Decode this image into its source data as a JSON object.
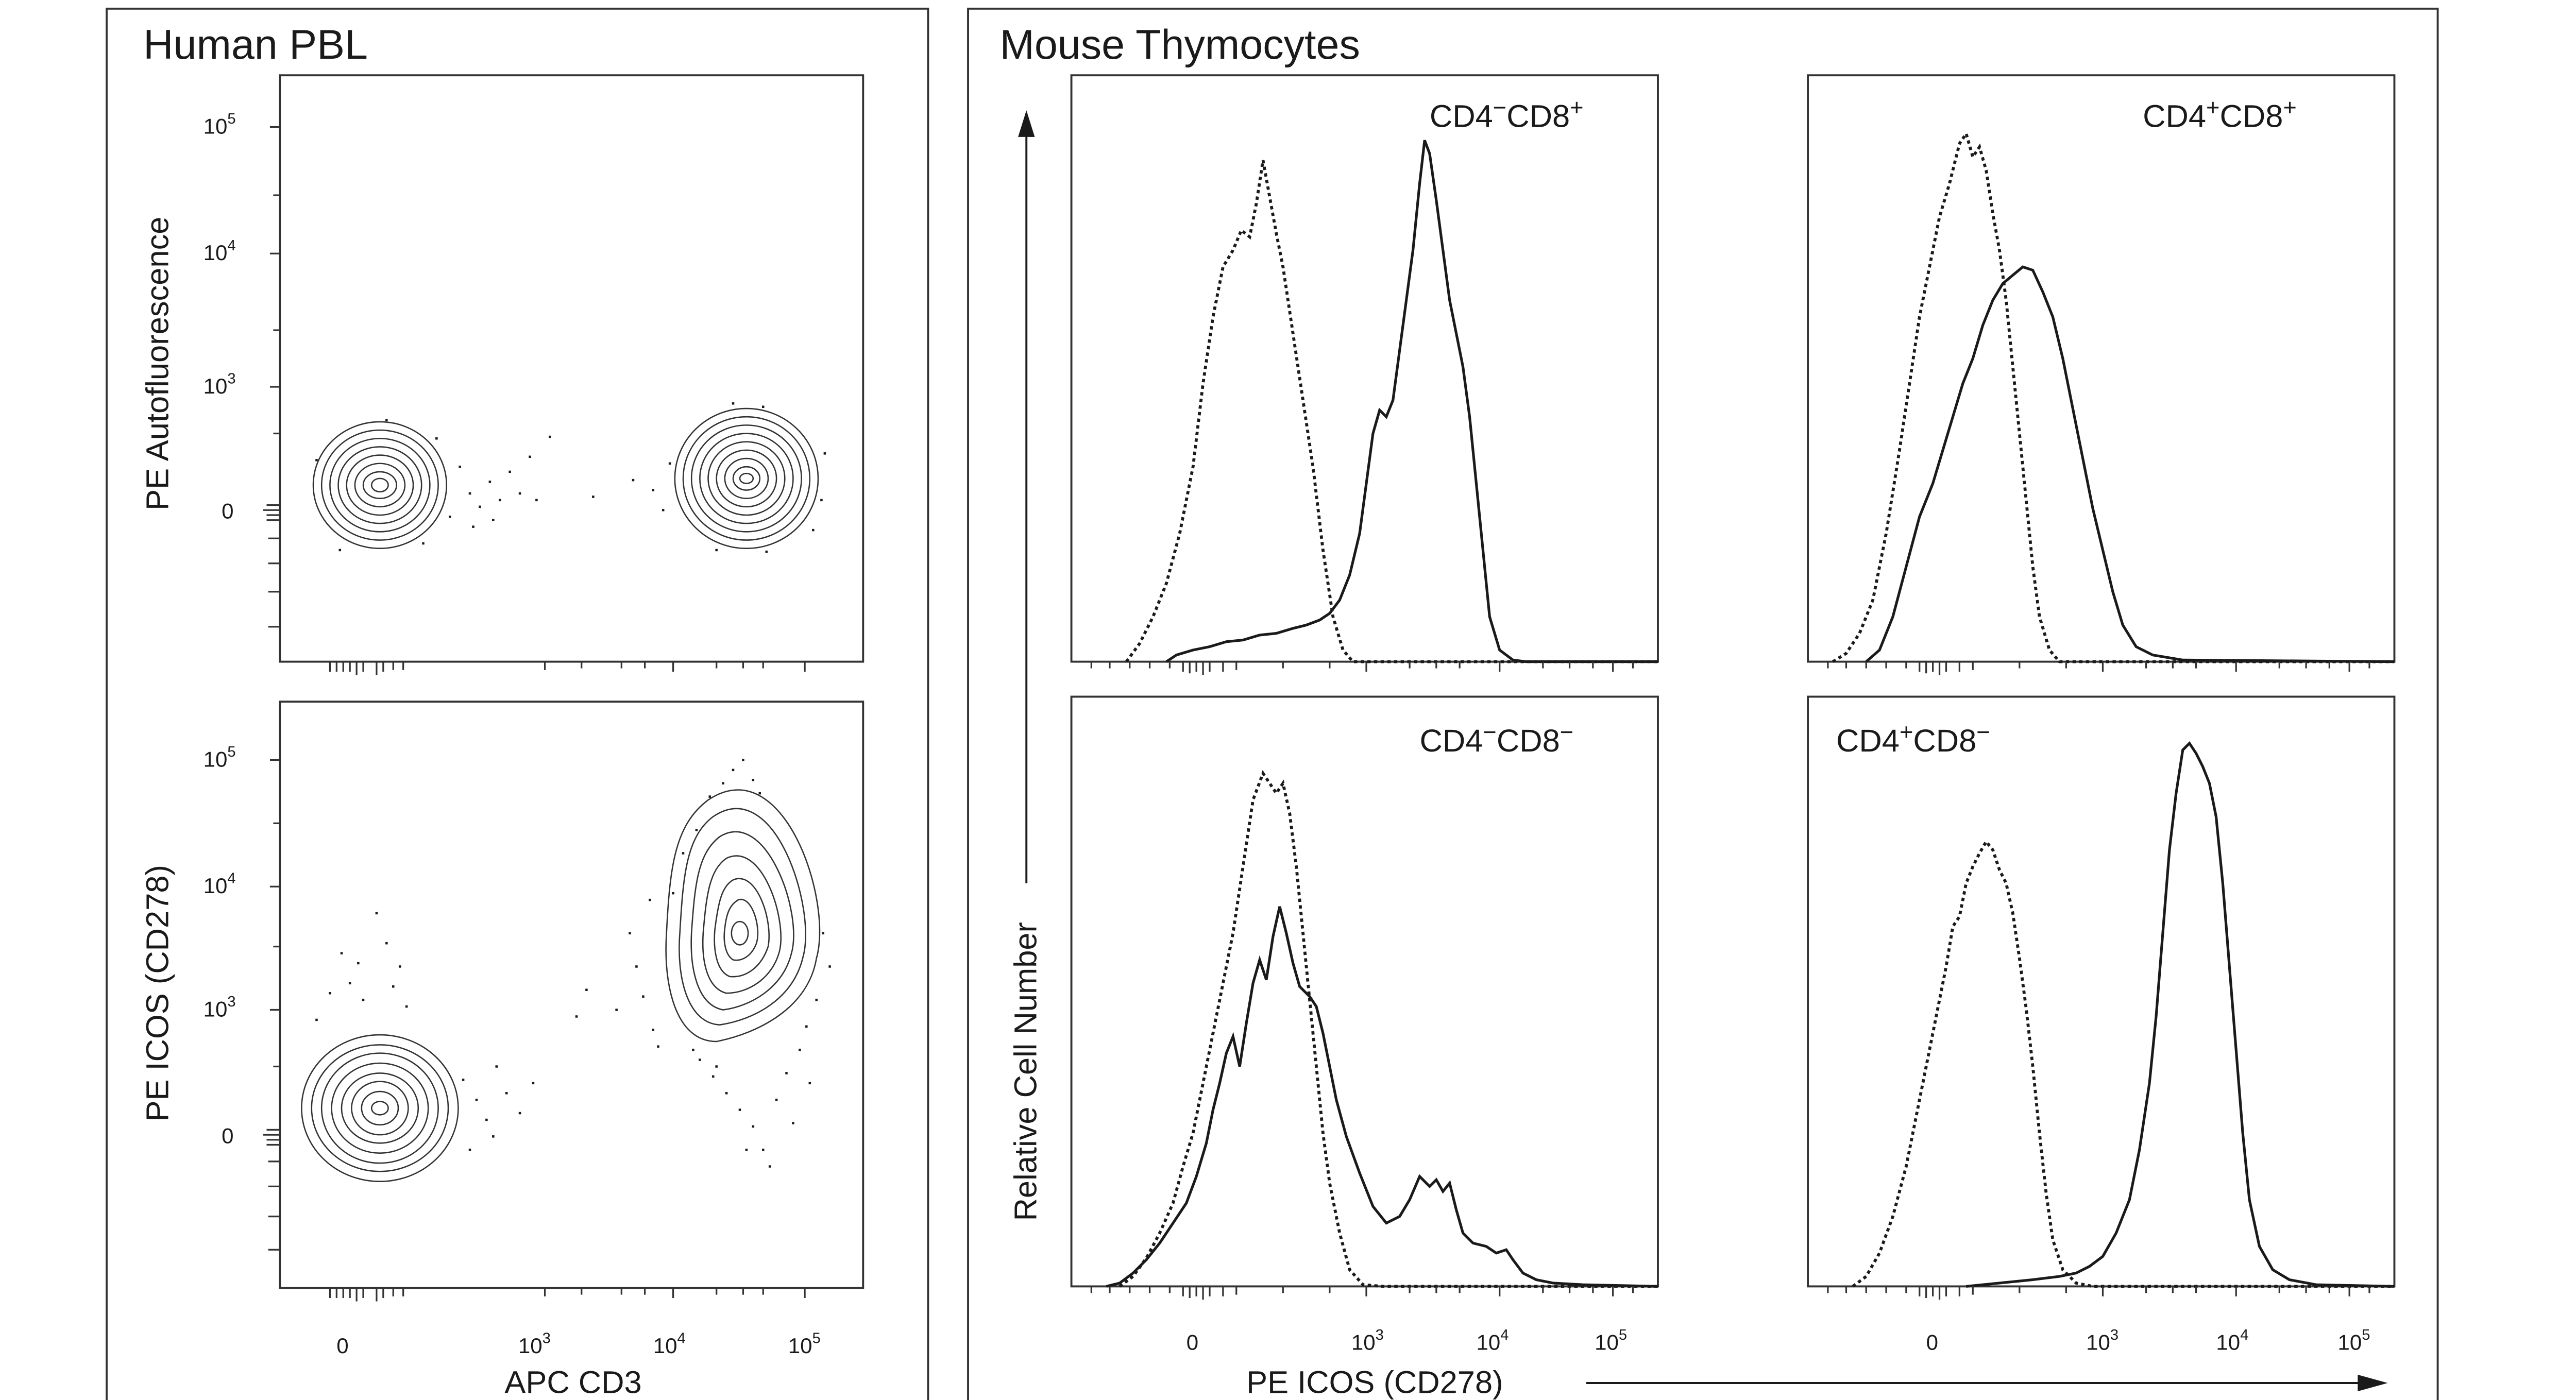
{
  "panels": {
    "left_title": "Human PBL",
    "right_title": "Mouse Thymocytes"
  },
  "axes": {
    "left_x_label": "APC CD3",
    "left_y_label_top": "PE Autofluorescence",
    "left_y_label_bottom": "PE  ICOS (CD278)",
    "right_x_label": "PE ICOS (CD278)",
    "right_y_label": "Relative Cell Number",
    "tick_labels": {
      "zero": "0",
      "e3_base": "10",
      "e3_exp": "3",
      "e4_base": "10",
      "e4_exp": "4",
      "e5_base": "10",
      "e5_exp": "5"
    }
  },
  "histogram_labels": {
    "h1_a": "CD4",
    "h1_a_sup": "−",
    "h1_b": "CD8",
    "h1_b_sup": "+",
    "h2_a": "CD4",
    "h2_a_sup": "+",
    "h2_b": "CD8",
    "h2_b_sup": "+",
    "h3_a": "CD4",
    "h3_a_sup": "−",
    "h3_b": "CD8",
    "h3_b_sup": "−",
    "h4_a": "CD4",
    "h4_a_sup": "+",
    "h4_b": "CD8",
    "h4_b_sup": "−"
  },
  "colors": {
    "ink": "#1a1a1a",
    "frame": "#333333",
    "background": "#ffffff"
  },
  "chart_data": [
    {
      "type": "contour",
      "x_axis": "APC CD3",
      "y_axis": "PE Autofluorescence",
      "x_scale": "biexponential",
      "y_scale": "biexponential",
      "x_ticks": [
        "0",
        "10^3",
        "10^4",
        "10^5"
      ],
      "y_ticks": [
        "0",
        "10^3",
        "10^4",
        "10^5"
      ],
      "populations": [
        {
          "center_x": 60,
          "center_y": 100,
          "note": "CD3-negative"
        },
        {
          "center_x": 32000,
          "center_y": 100,
          "note": "CD3-positive"
        }
      ]
    },
    {
      "type": "contour",
      "x_axis": "APC CD3",
      "y_axis": "PE ICOS (CD278)",
      "x_scale": "biexponential",
      "y_scale": "biexponential",
      "x_ticks": [
        "0",
        "10^3",
        "10^4",
        "10^5"
      ],
      "y_ticks": [
        "0",
        "10^3",
        "10^4",
        "10^5"
      ],
      "populations": [
        {
          "center_x": 40,
          "center_y": 150,
          "note": "CD3-negative"
        },
        {
          "center_x": 33000,
          "center_y": 3000,
          "note": "CD3-positive ICOS-positive"
        }
      ]
    },
    {
      "type": "histogram",
      "label": "CD4−CD8+",
      "x_axis": "PE ICOS (CD278)",
      "y_axis": "Relative Cell Number",
      "x_ticks": [
        "0",
        "10^3",
        "10^4",
        "10^5"
      ],
      "series": [
        {
          "style": "dotted",
          "peak_x": 200,
          "relative_peak": 0.9
        },
        {
          "style": "solid",
          "peak_x": 2500,
          "relative_peak": 1.0
        }
      ]
    },
    {
      "type": "histogram",
      "label": "CD4+CD8+",
      "x_axis": "PE ICOS (CD278)",
      "y_axis": "Relative Cell Number",
      "x_ticks": [
        "0",
        "10^3",
        "10^4",
        "10^5"
      ],
      "series": [
        {
          "style": "dotted",
          "peak_x": 100,
          "relative_peak": 1.0
        },
        {
          "style": "solid",
          "peak_x": 400,
          "relative_peak": 0.72
        }
      ]
    },
    {
      "type": "histogram",
      "label": "CD4−CD8−",
      "x_axis": "PE ICOS (CD278)",
      "y_axis": "Relative Cell Number",
      "x_ticks": [
        "0",
        "10^3",
        "10^4",
        "10^5"
      ],
      "series": [
        {
          "style": "dotted",
          "peak_x": 200,
          "relative_peak": 1.0
        },
        {
          "style": "solid",
          "peak_x": 300,
          "relative_peak": 0.72,
          "secondary_peak_x": 3500,
          "secondary_relative_peak": 0.2
        }
      ]
    },
    {
      "type": "histogram",
      "label": "CD4+CD8−",
      "x_axis": "PE ICOS (CD278)",
      "y_axis": "Relative Cell Number",
      "x_ticks": [
        "0",
        "10^3",
        "10^4",
        "10^5"
      ],
      "series": [
        {
          "style": "dotted",
          "peak_x": 200,
          "relative_peak": 0.68
        },
        {
          "style": "solid",
          "peak_x": 5000,
          "relative_peak": 1.0
        }
      ]
    }
  ]
}
